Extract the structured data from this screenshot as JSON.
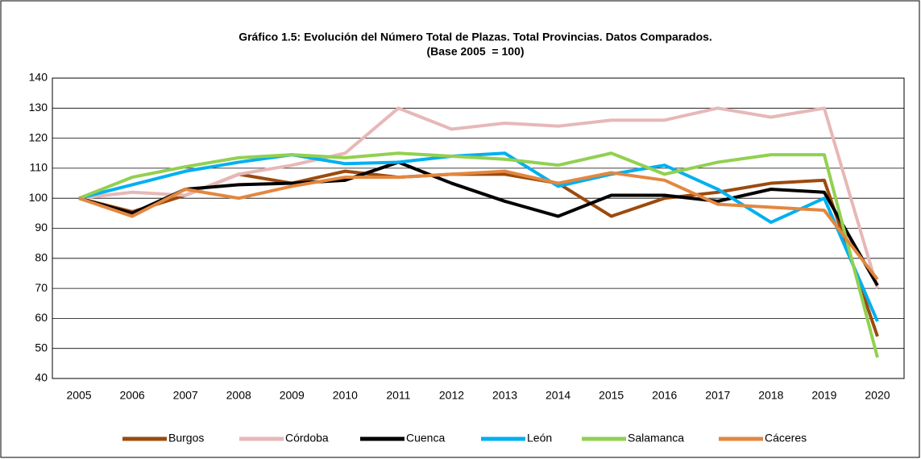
{
  "chart_data": {
    "type": "line",
    "title": "Gráfico 1.5: Evolución del Número Total de Plazas. Total Provincias. Datos Comparados.",
    "subtitle": "(Base 2005  = 100)",
    "categories": [
      "2005",
      "2006",
      "2007",
      "2008",
      "2009",
      "2010",
      "2011",
      "2012",
      "2013",
      "2014",
      "2015",
      "2016",
      "2017",
      "2018",
      "2019",
      "2020"
    ],
    "series": [
      {
        "name": "Burgos",
        "color": "#9c4a0e",
        "values": [
          100,
          95.5,
          101,
          108,
          105,
          109,
          107,
          108,
          108,
          105,
          94,
          100,
          102,
          105,
          106,
          54
        ]
      },
      {
        "name": "Córdoba",
        "color": "#e6b8b7",
        "values": [
          100,
          102,
          101,
          108,
          111,
          115,
          130,
          123,
          125,
          124,
          126,
          126,
          130,
          127,
          130,
          70
        ]
      },
      {
        "name": "Cuenca",
        "color": "#000000",
        "values": [
          100,
          95,
          103,
          104.5,
          105,
          106,
          112,
          105,
          99,
          94,
          101,
          101,
          99,
          103,
          102,
          71
        ]
      },
      {
        "name": "León",
        "color": "#00b0f0",
        "values": [
          100,
          104.5,
          109,
          112,
          114.5,
          111.5,
          112,
          114,
          115,
          104,
          108,
          111,
          103,
          92,
          100,
          59
        ]
      },
      {
        "name": "Salamanca",
        "color": "#92d050",
        "values": [
          100,
          107,
          110.5,
          113.5,
          114.5,
          113.5,
          115,
          114,
          113,
          111,
          115,
          108,
          112,
          114.5,
          114.5,
          47
        ]
      },
      {
        "name": "Cáceres",
        "color": "#e3873f",
        "values": [
          100,
          94,
          103,
          100,
          104,
          107,
          107,
          108,
          109,
          105,
          108.5,
          106,
          98,
          97,
          96,
          73
        ]
      }
    ],
    "ylim": [
      40,
      140
    ],
    "yticks": [
      40,
      50,
      60,
      70,
      80,
      90,
      100,
      110,
      120,
      130,
      140
    ],
    "grid": true,
    "legend": "bottom"
  }
}
